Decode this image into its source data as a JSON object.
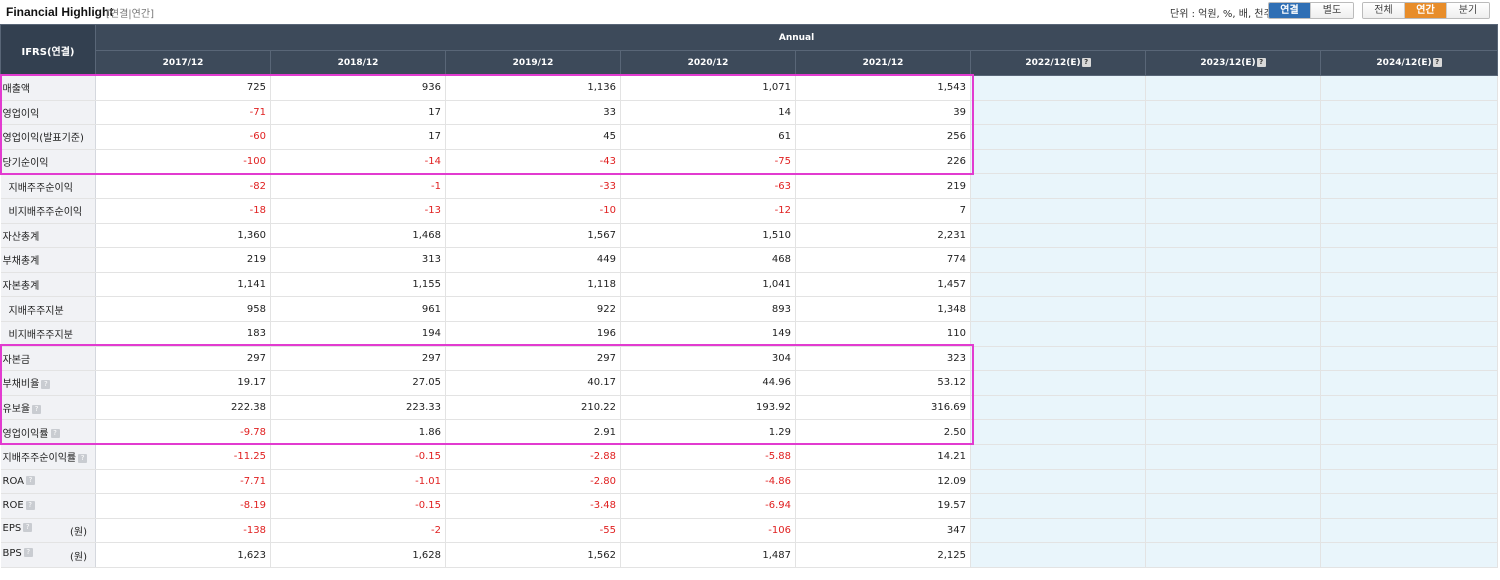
{
  "header": {
    "title": "Financial Highlight",
    "subtitle": "[연결|연간]",
    "unit": "단위 : 억원, %, 배, 천주",
    "basis_toggle": [
      {
        "label": "연결",
        "active": true
      },
      {
        "label": "별도",
        "active": false
      }
    ],
    "period_toggle": [
      {
        "label": "전체",
        "active": false
      },
      {
        "label": "연간",
        "active": true
      },
      {
        "label": "분기",
        "active": false
      }
    ]
  },
  "table": {
    "corner": "IFRS(연결)",
    "group_label": "Annual",
    "columns": [
      "2017/12",
      "2018/12",
      "2019/12",
      "2020/12",
      "2021/12",
      "2022/12(E)",
      "2023/12(E)",
      "2024/12(E)"
    ],
    "estimate_help": "?",
    "rows": [
      {
        "label": "매출액",
        "sub": false,
        "help": false,
        "unit": "",
        "values": [
          "725",
          "936",
          "1,136",
          "1,071",
          "1,543"
        ]
      },
      {
        "label": "영업이익",
        "sub": false,
        "help": false,
        "unit": "",
        "values": [
          "-71",
          "17",
          "33",
          "14",
          "39"
        ]
      },
      {
        "label": "영업이익(발표기준)",
        "sub": false,
        "help": false,
        "unit": "",
        "values": [
          "-60",
          "17",
          "45",
          "61",
          "256"
        ]
      },
      {
        "label": "당기순이익",
        "sub": false,
        "help": false,
        "unit": "",
        "values": [
          "-100",
          "-14",
          "-43",
          "-75",
          "226"
        ]
      },
      {
        "label": "지배주주순이익",
        "sub": true,
        "help": false,
        "unit": "",
        "values": [
          "-82",
          "-1",
          "-33",
          "-63",
          "219"
        ]
      },
      {
        "label": "비지배주주순이익",
        "sub": true,
        "help": false,
        "unit": "",
        "values": [
          "-18",
          "-13",
          "-10",
          "-12",
          "7"
        ]
      },
      {
        "label": "자산총계",
        "sub": false,
        "help": false,
        "unit": "",
        "values": [
          "1,360",
          "1,468",
          "1,567",
          "1,510",
          "2,231"
        ]
      },
      {
        "label": "부채총계",
        "sub": false,
        "help": false,
        "unit": "",
        "values": [
          "219",
          "313",
          "449",
          "468",
          "774"
        ]
      },
      {
        "label": "자본총계",
        "sub": false,
        "help": false,
        "unit": "",
        "values": [
          "1,141",
          "1,155",
          "1,118",
          "1,041",
          "1,457"
        ]
      },
      {
        "label": "지배주주지분",
        "sub": true,
        "help": false,
        "unit": "",
        "values": [
          "958",
          "961",
          "922",
          "893",
          "1,348"
        ]
      },
      {
        "label": "비지배주주지분",
        "sub": true,
        "help": false,
        "unit": "",
        "values": [
          "183",
          "194",
          "196",
          "149",
          "110"
        ]
      },
      {
        "label": "자본금",
        "sub": false,
        "help": false,
        "unit": "",
        "values": [
          "297",
          "297",
          "297",
          "304",
          "323"
        ]
      },
      {
        "label": "부채비율",
        "sub": false,
        "help": true,
        "unit": "",
        "values": [
          "19.17",
          "27.05",
          "40.17",
          "44.96",
          "53.12"
        ]
      },
      {
        "label": "유보율",
        "sub": false,
        "help": true,
        "unit": "",
        "values": [
          "222.38",
          "223.33",
          "210.22",
          "193.92",
          "316.69"
        ]
      },
      {
        "label": "영업이익률",
        "sub": false,
        "help": true,
        "unit": "",
        "values": [
          "-9.78",
          "1.86",
          "2.91",
          "1.29",
          "2.50"
        ]
      },
      {
        "label": "지배주주순이익률",
        "sub": false,
        "help": true,
        "unit": "",
        "values": [
          "-11.25",
          "-0.15",
          "-2.88",
          "-5.88",
          "14.21"
        ]
      },
      {
        "label": "ROA",
        "sub": false,
        "help": true,
        "unit": "",
        "values": [
          "-7.71",
          "-1.01",
          "-2.80",
          "-4.86",
          "12.09"
        ]
      },
      {
        "label": "ROE",
        "sub": false,
        "help": true,
        "unit": "",
        "values": [
          "-8.19",
          "-0.15",
          "-3.48",
          "-6.94",
          "19.57"
        ]
      },
      {
        "label": "EPS",
        "sub": false,
        "help": true,
        "unit": "(원)",
        "values": [
          "-138",
          "-2",
          "-55",
          "-106",
          "347"
        ]
      },
      {
        "label": "BPS",
        "sub": false,
        "help": true,
        "unit": "(원)",
        "values": [
          "1,623",
          "1,628",
          "1,562",
          "1,487",
          "2,125"
        ]
      }
    ]
  },
  "highlights": [
    {
      "name": "highlight-income",
      "first_row": 0,
      "last_row": 3,
      "color": "#e23bd0"
    },
    {
      "name": "highlight-ratios",
      "first_row": 11,
      "last_row": 14,
      "color": "#e23bd0"
    }
  ],
  "colors": {
    "header_bg": "#3d4a5a",
    "negative": "#e02020",
    "estimate_bg": "#e9f5fb",
    "toggle_blue": "#2f6fb5",
    "toggle_orange": "#e88d2a"
  }
}
